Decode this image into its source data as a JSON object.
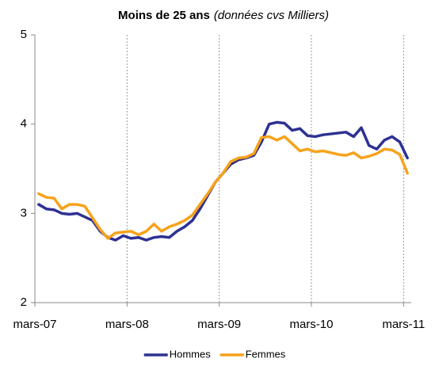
{
  "chart_data": {
    "type": "line",
    "title": "Moins de 25 ans",
    "subtitle": "(données cvs Milliers)",
    "categories": [
      "mars-07",
      null,
      null,
      null,
      null,
      null,
      null,
      null,
      null,
      null,
      null,
      null,
      "mars-08",
      null,
      null,
      null,
      null,
      null,
      null,
      null,
      null,
      null,
      null,
      null,
      "mars-09",
      null,
      null,
      null,
      null,
      null,
      null,
      null,
      null,
      null,
      null,
      null,
      "mars-10",
      null,
      null,
      null,
      null,
      null,
      null,
      null,
      null,
      null,
      null,
      null,
      "mars-11"
    ],
    "series": [
      {
        "name": "Hommes",
        "color": "#2e3192",
        "values": [
          3.1,
          3.05,
          3.04,
          3.0,
          2.99,
          3.0,
          2.96,
          2.92,
          2.8,
          2.73,
          2.7,
          2.75,
          2.72,
          2.73,
          2.7,
          2.73,
          2.74,
          2.73,
          2.8,
          2.85,
          2.92,
          3.05,
          3.2,
          3.35,
          3.45,
          3.55,
          3.6,
          3.62,
          3.65,
          3.8,
          4.0,
          4.02,
          4.01,
          3.93,
          3.95,
          3.87,
          3.86,
          3.88,
          3.89,
          3.9,
          3.91,
          3.86,
          3.96,
          3.76,
          3.72,
          3.82,
          3.86,
          3.8,
          3.62
        ]
      },
      {
        "name": "Femmes",
        "color": "#f7a21b",
        "values": [
          3.22,
          3.18,
          3.17,
          3.05,
          3.1,
          3.1,
          3.08,
          2.95,
          2.82,
          2.72,
          2.78,
          2.79,
          2.8,
          2.76,
          2.8,
          2.88,
          2.8,
          2.85,
          2.88,
          2.92,
          2.98,
          3.1,
          3.22,
          3.35,
          3.45,
          3.58,
          3.62,
          3.63,
          3.67,
          3.85,
          3.86,
          3.82,
          3.86,
          3.78,
          3.7,
          3.72,
          3.69,
          3.7,
          3.68,
          3.66,
          3.65,
          3.68,
          3.62,
          3.64,
          3.67,
          3.72,
          3.71,
          3.66,
          3.45
        ]
      }
    ],
    "ylim": [
      2,
      5
    ],
    "yticks": [
      2,
      3,
      4,
      5
    ],
    "grid": "x",
    "legend": "bottom"
  }
}
